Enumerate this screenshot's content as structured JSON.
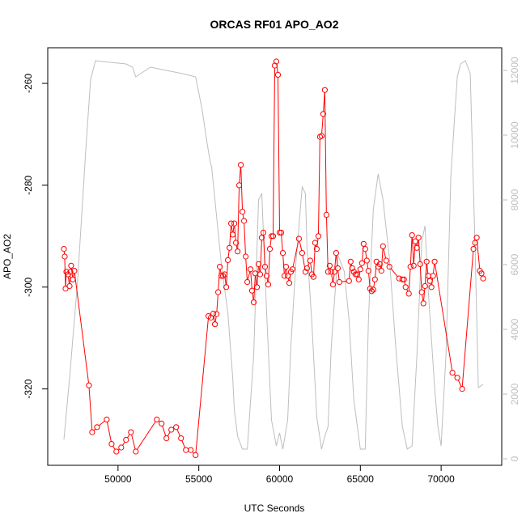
{
  "chart_data": {
    "type": "line",
    "title": "ORCAS RF01 APO_AO2",
    "xlabel": "UTC Seconds",
    "ylabel": "APO_AO2",
    "xlim": [
      45650,
      73750
    ],
    "ylim": [
      -335,
      -253
    ],
    "y2lim": [
      -200,
      12700
    ],
    "x_ticks": [
      50000,
      55000,
      60000,
      65000,
      70000
    ],
    "x_tick_labels": [
      "50000",
      "55000",
      "60000",
      "65000",
      "70000"
    ],
    "y_ticks": [
      -320,
      -300,
      -280,
      -260
    ],
    "y_tick_labels": [
      "-320",
      "-300",
      "-280",
      "-260"
    ],
    "y2_ticks": [
      0,
      2000,
      4000,
      6000,
      8000,
      10000,
      12000
    ],
    "y2_tick_labels": [
      "0",
      "2000",
      "4000",
      "6000",
      "8000",
      "10000",
      "12000"
    ],
    "grid": false,
    "colors": {
      "apo": "#ff0000",
      "altitude": "#bebebe",
      "axis": "#000000",
      "right_axis": "#bebebe"
    },
    "series": [
      {
        "axis": "left",
        "style": "line-with-open-circles",
        "x": [
          46650,
          46700,
          46750,
          46800,
          46900,
          47000,
          47050,
          47100,
          47200,
          47300,
          48200,
          48400,
          48700,
          49300,
          49600,
          49900,
          50200,
          50500,
          50800,
          51100,
          52400,
          52700,
          53000,
          53300,
          53600,
          53900,
          54200,
          54500,
          54800,
          55600,
          55750,
          55900,
          56000,
          56100,
          56200,
          56300,
          56400,
          56500,
          56600,
          56700,
          56800,
          56900,
          57000,
          57100,
          57200,
          57300,
          57400,
          57500,
          57600,
          57700,
          57800,
          57900,
          58000,
          58200,
          58300,
          58400,
          58500,
          58600,
          58700,
          58800,
          58900,
          59000,
          59100,
          59200,
          59300,
          59400,
          59500,
          59600,
          59700,
          59800,
          59900,
          60000,
          60100,
          60200,
          60300,
          60400,
          60500,
          60600,
          60700,
          60800,
          61200,
          61400,
          61600,
          61700,
          61900,
          62000,
          62100,
          62200,
          62300,
          62400,
          62500,
          62600,
          62700,
          62800,
          62900,
          63000,
          63100,
          63200,
          63300,
          63400,
          63500,
          63600,
          63700,
          64300,
          64400,
          64500,
          64600,
          64700,
          64800,
          64900,
          65000,
          65100,
          65200,
          65300,
          65400,
          65500,
          65600,
          65700,
          65800,
          65900,
          66000,
          66100,
          66200,
          66300,
          66400,
          66600,
          66800,
          67400,
          67600,
          67700,
          67800,
          68000,
          68100,
          68200,
          68300,
          68400,
          68500,
          68600,
          68700,
          68800,
          68900,
          69000,
          69100,
          69200,
          69300,
          69400,
          69500,
          69600,
          70700,
          71000,
          71300,
          72000,
          72100,
          72200,
          72400,
          72500,
          72600
        ],
        "values": [
          -292.5,
          -294.0,
          -300.3,
          -297.0,
          -297.5,
          -299.8,
          -297.0,
          -295.8,
          -298.5,
          -296.8,
          -319.3,
          -328.5,
          -327.5,
          -326.0,
          -330.8,
          -332.3,
          -331.5,
          -330.0,
          -328.5,
          -332.3,
          -326.0,
          -326.8,
          -329.7,
          -328.0,
          -327.5,
          -329.7,
          -332.0,
          -332.0,
          -333.0,
          -305.7,
          -306.0,
          -305.2,
          -307.3,
          -305.3,
          -301.0,
          -296.0,
          -297.8,
          -297.8,
          -297.5,
          -300.0,
          -294.7,
          -292.3,
          -287.5,
          -289.7,
          -287.5,
          -291.3,
          -293.0,
          -280.0,
          -276.0,
          -285.2,
          -287.0,
          -294.0,
          -299.0,
          -296.5,
          -300.7,
          -303.0,
          -297.3,
          -300.0,
          -295.5,
          -297.5,
          -290.3,
          -289.3,
          -296.0,
          -297.8,
          -299.5,
          -292.5,
          -290.0,
          -290.0,
          -256.5,
          -255.7,
          -258.3,
          -289.3,
          -289.3,
          -293.3,
          -297.8,
          -296.0,
          -297.8,
          -299.2,
          -297.0,
          -296.5,
          -290.5,
          -293.3,
          -297.0,
          -296.3,
          -294.8,
          -297.5,
          -298.0,
          -291.3,
          -292.5,
          -290.0,
          -270.5,
          -270.3,
          -266.0,
          -261.3,
          -285.8,
          -297.0,
          -295.8,
          -297.0,
          -299.5,
          -297.0,
          -293.3,
          -296.3,
          -299.0,
          -298.8,
          -295.0,
          -296.3,
          -297.0,
          -297.5,
          -297.5,
          -298.5,
          -296.5,
          -295.3,
          -291.5,
          -292.5,
          -294.8,
          -296.8,
          -300.3,
          -300.8,
          -300.5,
          -298.5,
          -295.0,
          -296.0,
          -295.5,
          -296.8,
          -292.0,
          -294.8,
          -296.0,
          -298.3,
          -298.5,
          -298.5,
          -300.0,
          -301.3,
          -296.0,
          -289.8,
          -295.8,
          -291.0,
          -292.3,
          -290.3,
          -295.5,
          -301.0,
          -303.2,
          -299.8,
          -295.0,
          -297.8,
          -298.8,
          -300.0,
          -297.8,
          -295.0,
          -316.8,
          -317.8,
          -320.0,
          -292.5,
          -291.3,
          -290.3,
          -296.8,
          -297.3,
          -298.3
        ]
      },
      {
        "axis": "right",
        "style": "line",
        "x": [
          46650,
          47000,
          47500,
          48000,
          48300,
          48600,
          49500,
          50500,
          50900,
          51100,
          52000,
          53000,
          54000,
          54800,
          55200,
          55500,
          55700,
          55800,
          55900,
          56100,
          56400,
          56800,
          57100,
          57200,
          57400,
          57700,
          58000,
          58400,
          58700,
          58900,
          59200,
          59500,
          59800,
          60000,
          60200,
          60500,
          60700,
          61000,
          61400,
          61600,
          61700,
          62000,
          62300,
          62600,
          62800,
          63000,
          63200,
          63600,
          64000,
          64300,
          64600,
          65000,
          65300,
          65500,
          65800,
          66100,
          66400,
          66800,
          67200,
          67600,
          67900,
          68200,
          68500,
          68800,
          69000,
          69200,
          69600,
          69800,
          70000,
          70300,
          70600,
          70800,
          71000,
          71200,
          71500,
          71800,
          72100,
          72300,
          72600
        ],
        "values": [
          600,
          2500,
          5500,
          9500,
          11700,
          12300,
          12250,
          12200,
          12100,
          11800,
          12100,
          12000,
          11900,
          11800,
          10800,
          9800,
          9200,
          9000,
          8500,
          7500,
          6000,
          4500,
          2500,
          1500,
          700,
          300,
          300,
          3200,
          8000,
          8200,
          4500,
          1200,
          400,
          800,
          300,
          1200,
          3500,
          6000,
          8400,
          8200,
          6500,
          4200,
          1300,
          300,
          700,
          1000,
          3500,
          6300,
          5800,
          4300,
          1800,
          300,
          300,
          4300,
          7700,
          8800,
          8000,
          6200,
          3400,
          1000,
          300,
          400,
          3200,
          6700,
          7200,
          5200,
          2200,
          1000,
          400,
          3200,
          8700,
          10300,
          11800,
          12200,
          12300,
          11900,
          6500,
          2200,
          2300
        ]
      }
    ]
  }
}
